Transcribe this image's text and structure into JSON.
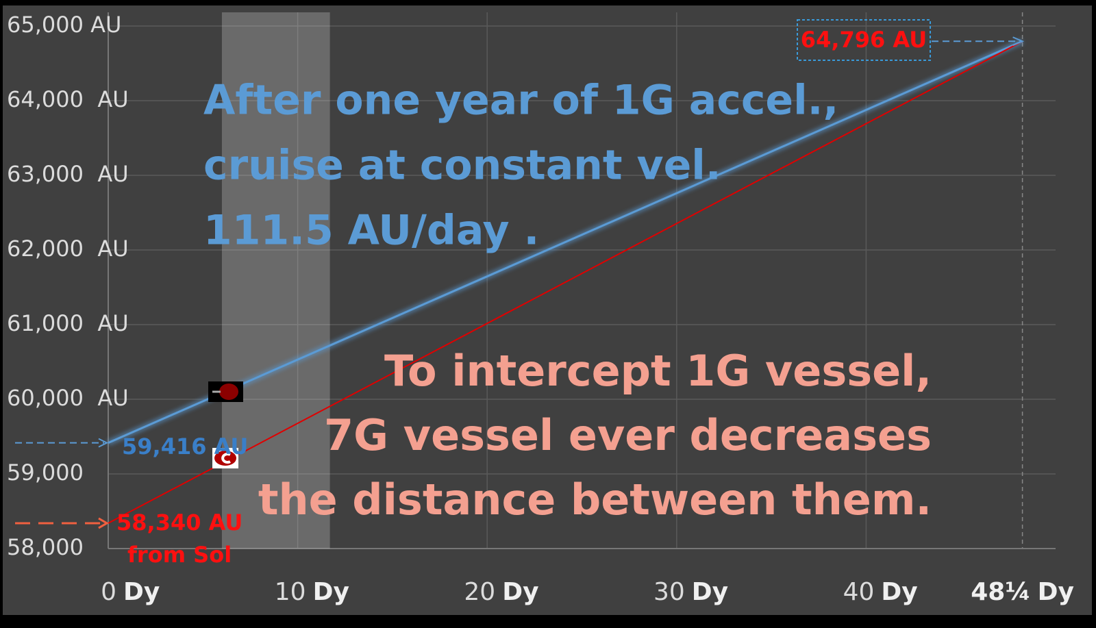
{
  "chart_data": {
    "type": "line",
    "x": [
      0,
      48.25
    ],
    "series": [
      {
        "name": "1G vessel",
        "color": "#5b9bd5",
        "values": [
          59416,
          64796
        ],
        "value_labels": [
          "59,416 AU",
          null
        ]
      },
      {
        "name": "7G vessel",
        "color": "#e00000",
        "values": [
          58340,
          64796
        ],
        "value_labels": [
          "58,340 AU",
          "64,796 AU"
        ]
      }
    ],
    "xlim": [
      0,
      50
    ],
    "xticks": [
      0,
      10,
      20,
      30,
      40,
      {
        "value": 48.25,
        "label": "48¼"
      }
    ],
    "x_unit": "Dy",
    "ylim": [
      58000,
      65000
    ],
    "yticks": [
      {
        "value": 58000,
        "label": "58,000"
      },
      {
        "value": 59000,
        "label": "59,000"
      },
      {
        "value": 60000,
        "label": "60,000  AU"
      },
      {
        "value": 61000,
        "label": "61,000  AU"
      },
      {
        "value": 62000,
        "label": "62,000  AU"
      },
      {
        "value": 63000,
        "label": "63,000  AU"
      },
      {
        "value": 64000,
        "label": "64,000  AU"
      },
      {
        "value": 65000,
        "label": "65,000 AU"
      }
    ],
    "grid": true,
    "shaded_span": [
      6,
      11.7
    ],
    "red_start_note": "from Sol",
    "blue_text": [
      "After one year of 1G accel.,",
      "cruise at constant vel.",
      "111.5 AU/day ."
    ],
    "red_text": [
      "To intercept 1G vessel,",
      "7G vessel ever decreases",
      "the distance between them."
    ]
  }
}
